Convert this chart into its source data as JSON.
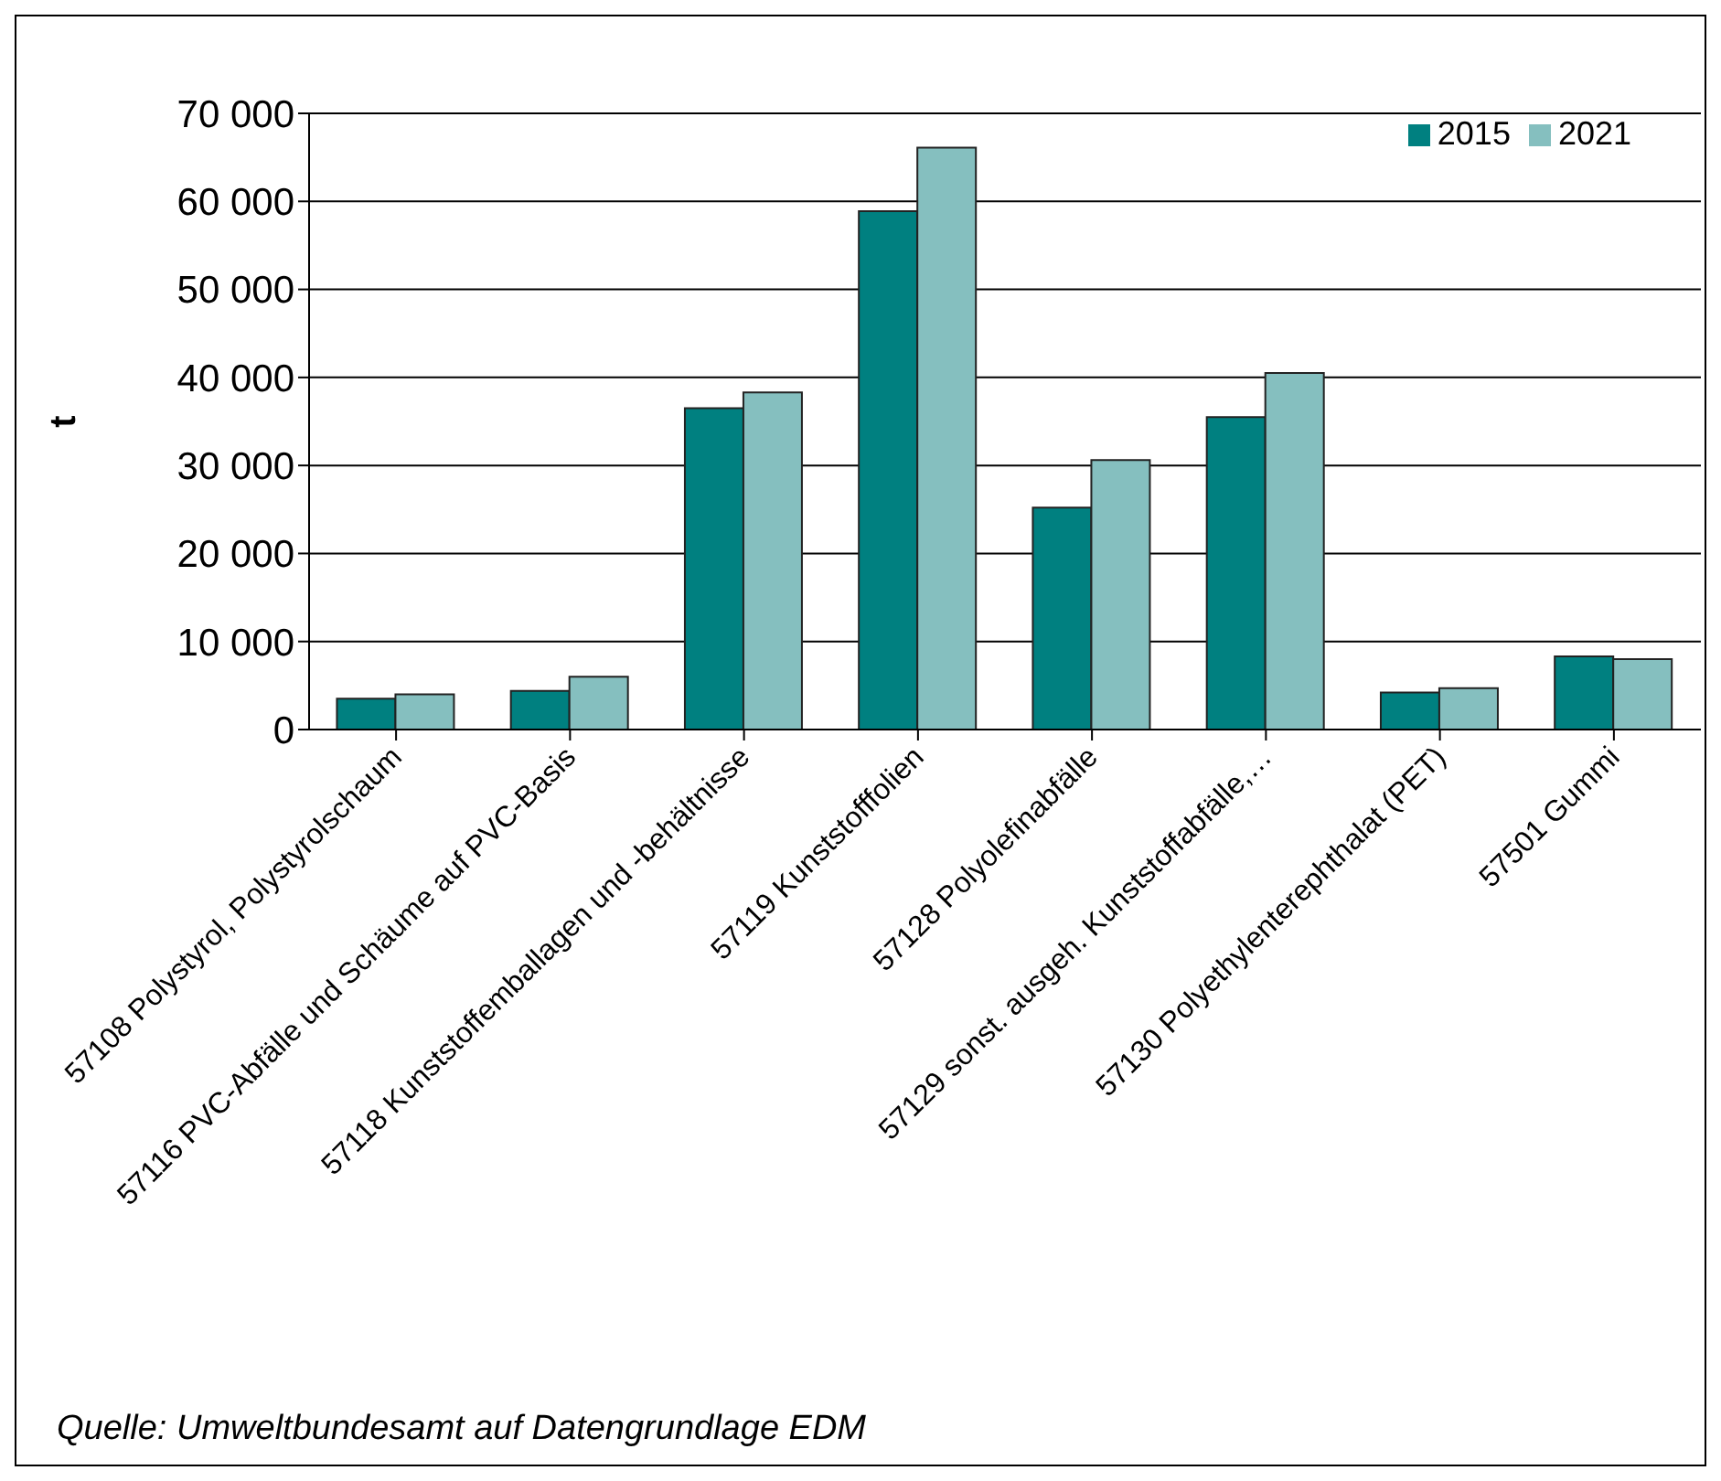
{
  "chart_data": {
    "type": "bar",
    "ylabel": "t",
    "categories": [
      "57108 Polystyrol, Polystyrolschaum",
      "57116 PVC-Abfälle und Schäume auf PVC-Basis",
      "57118 Kunststoffemballagen und -behältnisse",
      "57119 Kunststofffolien",
      "57128 Polyolefinabfälle",
      "57129 sonst. ausgeh. Kunststoffabfälle,…",
      "57130 Polyethylenterephthalat (PET)",
      "57501 Gummi"
    ],
    "series": [
      {
        "name": "2015",
        "color": "#008080",
        "values": [
          3500,
          4400,
          36500,
          58900,
          25200,
          35500,
          4200,
          8300
        ]
      },
      {
        "name": "2021",
        "color": "#85bfbf",
        "values": [
          4000,
          6000,
          38300,
          66100,
          30600,
          40500,
          4700,
          8000
        ]
      }
    ],
    "ylim": [
      0,
      70000
    ],
    "yticks": [
      {
        "value": 0,
        "label": "0"
      },
      {
        "value": 10000,
        "label": "10 000"
      },
      {
        "value": 20000,
        "label": "20 000"
      },
      {
        "value": 30000,
        "label": "30 000"
      },
      {
        "value": 40000,
        "label": "40 000"
      },
      {
        "value": 50000,
        "label": "50 000"
      },
      {
        "value": 60000,
        "label": "60 000"
      },
      {
        "value": 70000,
        "label": "70 000"
      }
    ],
    "grid": "y",
    "legend": "top right",
    "annotations": [
      "Quelle: Umweltbundesamt auf Datengrundlage EDM"
    ]
  }
}
